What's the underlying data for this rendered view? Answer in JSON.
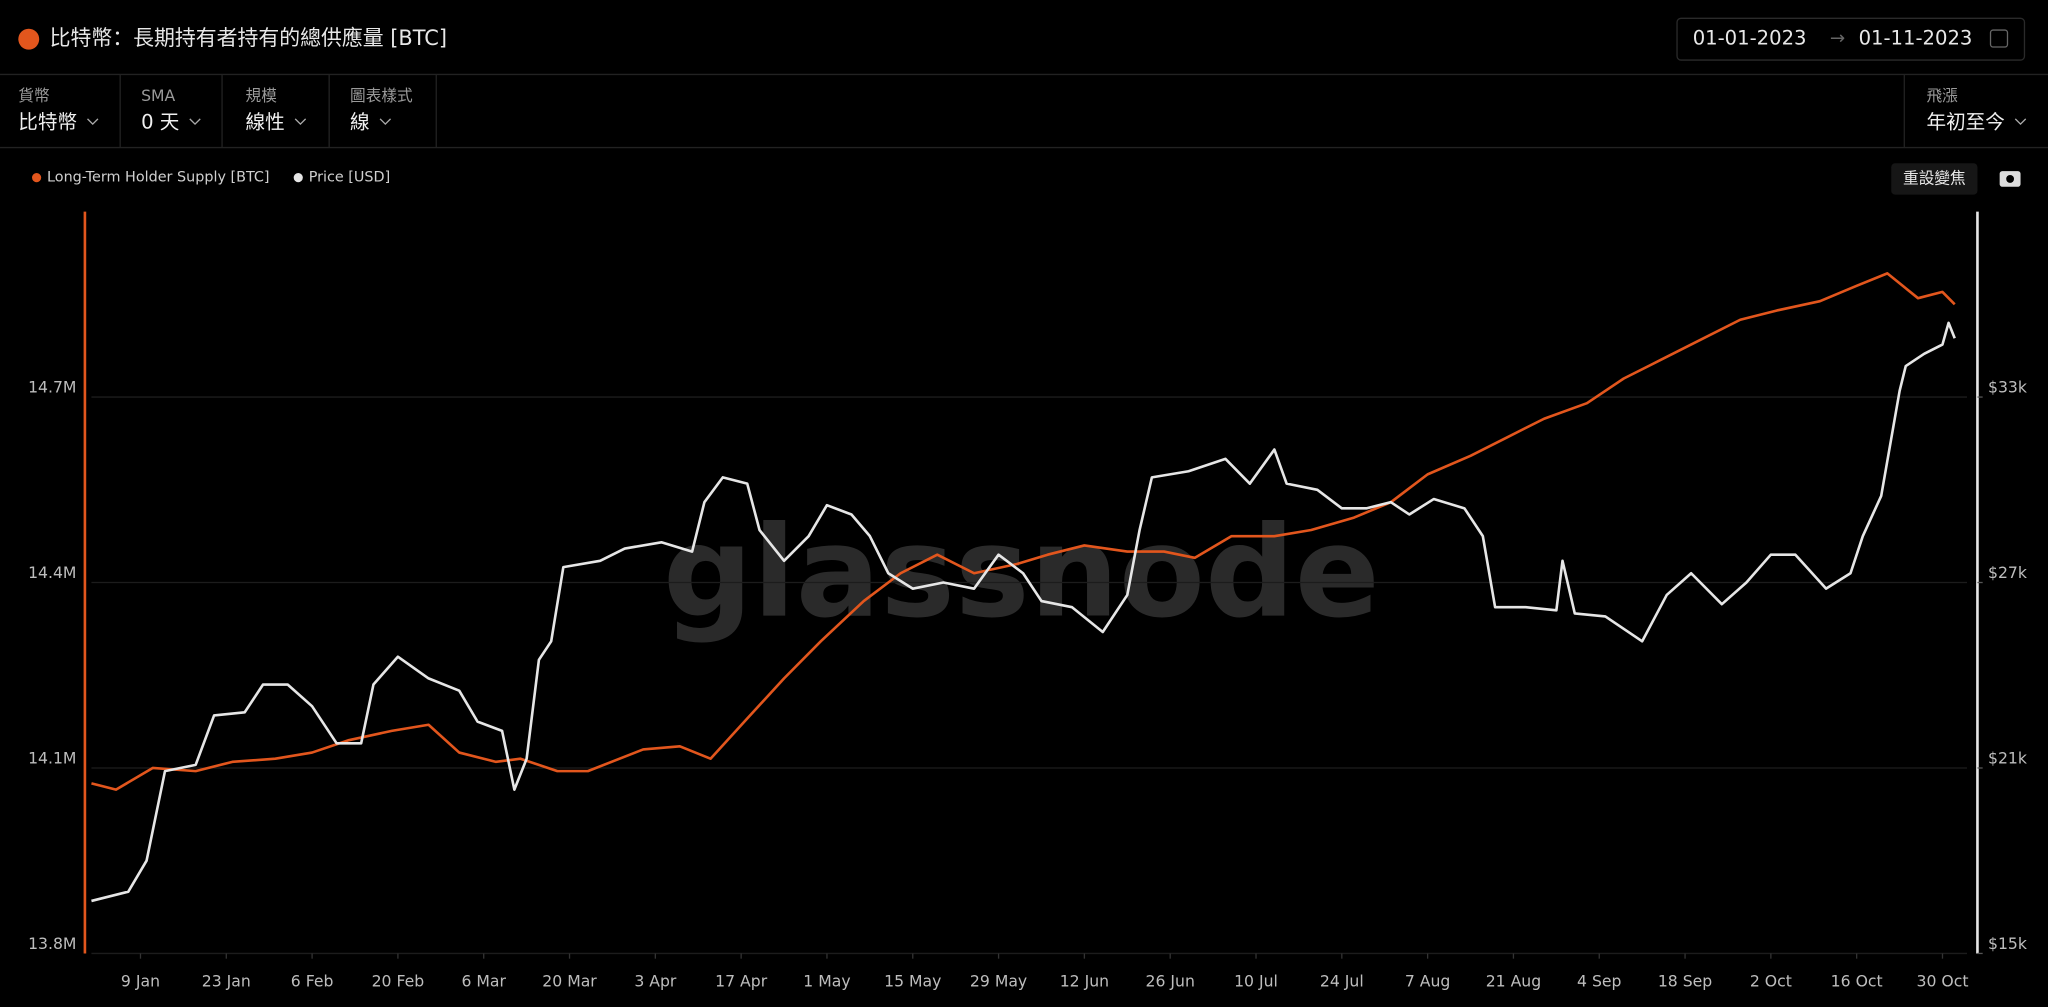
{
  "header": {
    "date_start": "01-01-2023",
    "date_arrow": "→",
    "date_end": "01-11-2023"
  },
  "controls": [
    {
      "label": "貨幣",
      "value": "比特幣"
    },
    {
      "label": "SMA",
      "value": "0 天"
    },
    {
      "label": "規模",
      "value": "線性"
    },
    {
      "label": "圖表樣式",
      "value": "線"
    },
    {
      "label": "飛漲",
      "value": "年初至今"
    }
  ],
  "reset_zoom": "重設變焦",
  "watermark": "glassnode",
  "chart_data": {
    "type": "line",
    "title": "比特幣：長期持有者持有的總供應量 [BTC]",
    "xlim": [
      "1 Jan",
      "3 Nov"
    ],
    "xticks": [
      "9 Jan",
      "23 Jan",
      "6 Feb",
      "20 Feb",
      "6 Mar",
      "20 Mar",
      "3 Apr",
      "17 Apr",
      "1 May",
      "15 May",
      "29 May",
      "12 Jun",
      "26 Jun",
      "10 Jul",
      "24 Jul",
      "7 Aug",
      "21 Aug",
      "4 Sep",
      "18 Sep",
      "2 Oct",
      "16 Oct",
      "30 Oct"
    ],
    "ylim": [
      13800000,
      15000000
    ],
    "yticks": [
      {
        "value": 13800000,
        "label": "13.8M"
      },
      {
        "value": 14100000,
        "label": "14.1M"
      },
      {
        "value": 14400000,
        "label": "14.4M"
      },
      {
        "value": 14700000,
        "label": "14.7M"
      }
    ],
    "y2lim": [
      15000,
      39000
    ],
    "y2ticks": [
      {
        "value": 15000,
        "label": "$15k"
      },
      {
        "value": 21000,
        "label": "$21k"
      },
      {
        "value": 27000,
        "label": "$27k"
      },
      {
        "value": 33000,
        "label": "$33k"
      }
    ],
    "grid": true,
    "legend": "top-left",
    "series": [
      {
        "name": "Long-Term Holder Supply [BTC]",
        "color": "#e2561d",
        "x": [
          "1 Jan",
          "5 Jan",
          "11 Jan",
          "18 Jan",
          "24 Jan",
          "31 Jan",
          "6 Feb",
          "12 Feb",
          "19 Feb",
          "25 Feb",
          "2 Mar",
          "8 Mar",
          "12 Mar",
          "18 Mar",
          "23 Mar",
          "1 Apr",
          "7 Apr",
          "12 Apr",
          "18 Apr",
          "24 Apr",
          "30 Apr",
          "7 May",
          "13 May",
          "19 May",
          "25 May",
          "1 Jun",
          "6 Jun",
          "12 Jun",
          "19 Jun",
          "25 Jun",
          "30 Jun",
          "6 Jul",
          "13 Jul",
          "19 Jul",
          "26 Jul",
          "1 Aug",
          "7 Aug",
          "14 Aug",
          "20 Aug",
          "26 Aug",
          "2 Sep",
          "8 Sep",
          "14 Sep",
          "21 Sep",
          "27 Sep",
          "3 Oct",
          "10 Oct",
          "16 Oct",
          "21 Oct",
          "26 Oct",
          "30 Oct",
          "1 Nov"
        ],
        "values": [
          14075000,
          14065000,
          14100000,
          14095000,
          14110000,
          14115000,
          14125000,
          14145000,
          14160000,
          14170000,
          14125000,
          14110000,
          14115000,
          14095000,
          14095000,
          14130000,
          14135000,
          14115000,
          14180000,
          14245000,
          14305000,
          14370000,
          14415000,
          14445000,
          14415000,
          14430000,
          14445000,
          14460000,
          14450000,
          14450000,
          14440000,
          14475000,
          14475000,
          14485000,
          14505000,
          14530000,
          14575000,
          14605000,
          14635000,
          14665000,
          14690000,
          14730000,
          14760000,
          14795000,
          14825000,
          14840000,
          14855000,
          14880000,
          14900000,
          14860000,
          14870000,
          14850000
        ]
      },
      {
        "name": "Price [USD]",
        "color": "#e6e6e6",
        "axis": "y2",
        "x": [
          "1 Jan",
          "7 Jan",
          "10 Jan",
          "13 Jan",
          "18 Jan",
          "21 Jan",
          "26 Jan",
          "29 Jan",
          "2 Feb",
          "6 Feb",
          "10 Feb",
          "14 Feb",
          "16 Feb",
          "20 Feb",
          "25 Feb",
          "2 Mar",
          "5 Mar",
          "9 Mar",
          "11 Mar",
          "13 Mar",
          "15 Mar",
          "17 Mar",
          "19 Mar",
          "25 Mar",
          "29 Mar",
          "4 Apr",
          "9 Apr",
          "11 Apr",
          "14 Apr",
          "18 Apr",
          "20 Apr",
          "24 Apr",
          "28 Apr",
          "1 May",
          "5 May",
          "8 May",
          "11 May",
          "15 May",
          "20 May",
          "25 May",
          "29 May",
          "2 Jun",
          "5 Jun",
          "10 Jun",
          "15 Jun",
          "19 Jun",
          "21 Jun",
          "23 Jun",
          "29 Jun",
          "5 Jul",
          "9 Jul",
          "13 Jul",
          "15 Jul",
          "20 Jul",
          "24 Jul",
          "28 Jul",
          "1 Aug",
          "4 Aug",
          "8 Aug",
          "13 Aug",
          "16 Aug",
          "18 Aug",
          "23 Aug",
          "28 Aug",
          "29 Aug",
          "31 Aug",
          "5 Sep",
          "11 Sep",
          "15 Sep",
          "19 Sep",
          "24 Sep",
          "28 Sep",
          "2 Oct",
          "6 Oct",
          "11 Oct",
          "15 Oct",
          "17 Oct",
          "20 Oct",
          "23 Oct",
          "24 Oct",
          "27 Oct",
          "30 Oct",
          "31 Oct",
          "1 Nov"
        ],
        "values": [
          16700,
          17000,
          18000,
          20900,
          21100,
          22700,
          22800,
          23700,
          23700,
          23000,
          21800,
          21800,
          23700,
          24600,
          23900,
          23500,
          22500,
          22200,
          20300,
          21300,
          24500,
          25100,
          27500,
          27700,
          28100,
          28300,
          28000,
          29600,
          30400,
          30200,
          28700,
          27700,
          28500,
          29500,
          29200,
          28500,
          27300,
          26800,
          27000,
          26800,
          27900,
          27300,
          26400,
          26200,
          25400,
          26600,
          28700,
          30400,
          30600,
          31000,
          30200,
          31300,
          30200,
          30000,
          29400,
          29400,
          29600,
          29200,
          29700,
          29400,
          28500,
          26200,
          26200,
          26100,
          27700,
          26000,
          25900,
          25100,
          26600,
          27300,
          26300,
          27000,
          27900,
          27900,
          26800,
          27300,
          28500,
          29800,
          33200,
          34000,
          34400,
          34700,
          35400,
          34900
        ]
      }
    ]
  }
}
